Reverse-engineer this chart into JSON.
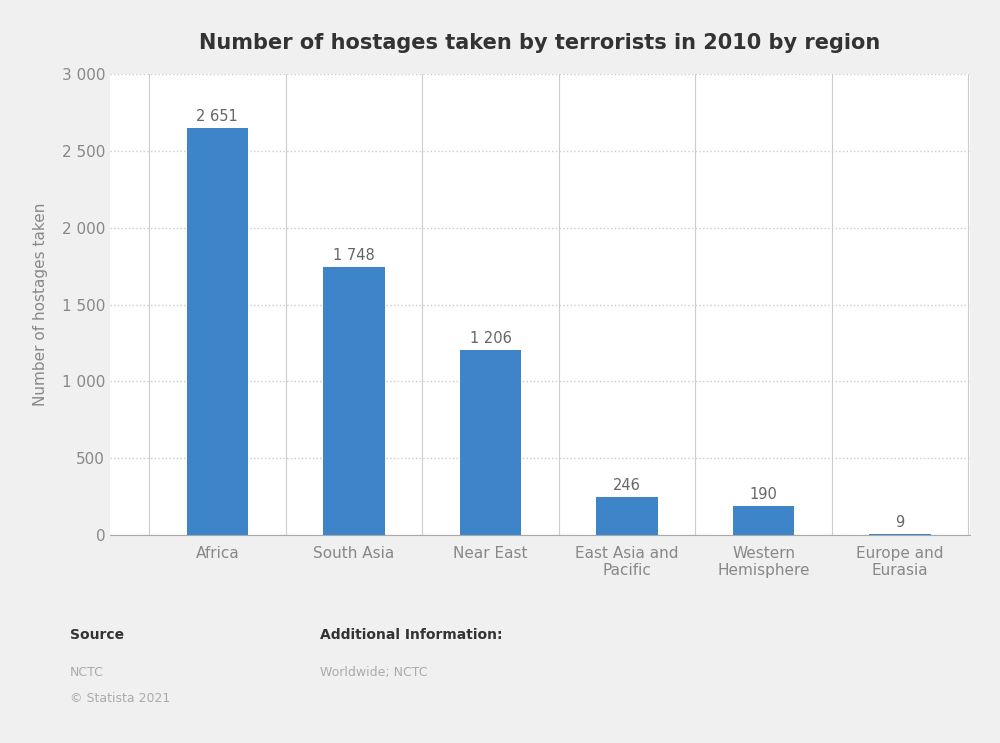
{
  "title": "Number of hostages taken by terrorists in 2010 by region",
  "categories": [
    "Africa",
    "South Asia",
    "Near East",
    "East Asia and\nPacific",
    "Western\nHemisphere",
    "Europe and\nEurasia"
  ],
  "values": [
    2651,
    1748,
    1206,
    246,
    190,
    9
  ],
  "bar_color": "#3d85c8",
  "ylabel": "Number of hostages taken",
  "ylim": [
    0,
    3000
  ],
  "yticks": [
    0,
    500,
    1000,
    1500,
    2000,
    2500,
    3000
  ],
  "ytick_labels": [
    "0",
    "500",
    "1 000",
    "1 500",
    "2 000",
    "2 500",
    "3 000"
  ],
  "bar_labels": [
    "2 651",
    "1 748",
    "1 206",
    "246",
    "190",
    "9"
  ],
  "background_color": "#f0f0f0",
  "plot_bg_color": "#ffffff",
  "title_fontsize": 15,
  "label_fontsize": 11,
  "tick_fontsize": 11,
  "source_text": "Source",
  "source_detail": "NCTC\n© Statista 2021",
  "additional_text": "Additional Information:",
  "additional_detail": "Worldwide; NCTC"
}
